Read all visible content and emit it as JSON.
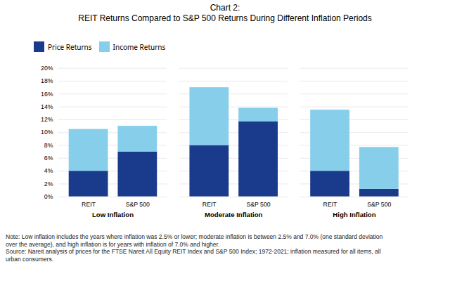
{
  "chart_data": {
    "type": "bar",
    "stacked": true,
    "title": "Chart 2:",
    "subtitle": "REIT Returns Compared to S&P 500 Returns During Different Inflation Periods",
    "categories": [
      "REIT",
      "S&P 500",
      "REIT",
      "S&P 500",
      "REIT",
      "S&P 500"
    ],
    "groups": [
      "Low Inflation",
      "Low Inflation",
      "Moderate Inflation",
      "Moderate Inflation",
      "High Inflation",
      "High Inflation"
    ],
    "series": [
      {
        "name": "Price Returns",
        "color": "#1a3a8c",
        "values": [
          4.0,
          7.0,
          8.0,
          11.7,
          4.0,
          1.2
        ]
      },
      {
        "name": "Income Returns",
        "color": "#87ceeb",
        "values": [
          6.5,
          4.0,
          9.0,
          2.1,
          9.5,
          6.5
        ]
      }
    ],
    "ylim": [
      0,
      20
    ],
    "yticks": [
      {
        "value": 0,
        "label": "0%"
      },
      {
        "value": 2,
        "label": "2%"
      },
      {
        "value": 4,
        "label": "4%"
      },
      {
        "value": 6,
        "label": "6%"
      },
      {
        "value": 8,
        "label": "8%"
      },
      {
        "value": 10,
        "label": "10%"
      },
      {
        "value": 12,
        "label": "12%"
      },
      {
        "value": 14,
        "label": "14%"
      },
      {
        "value": 16,
        "label": "16%"
      },
      {
        "value": 18,
        "label": "18%"
      },
      {
        "value": 20,
        "label": "20%"
      }
    ],
    "grid": true,
    "legend": "upper left",
    "notes": [
      "Note: Low inflation includes the years where inflation was 2.5% or lower; moderate inflation is between 2.5% and 7.0% (one standard deviation",
      "over the average), and high inflation is for years with inflation of 7.0% and higher.",
      "Source: Nareit analysis of prices for the FTSE Nareit All Equity REIT Index and S&P 500 Index; 1972-2021; inflation measured for all items, all",
      "urban consumers."
    ]
  }
}
